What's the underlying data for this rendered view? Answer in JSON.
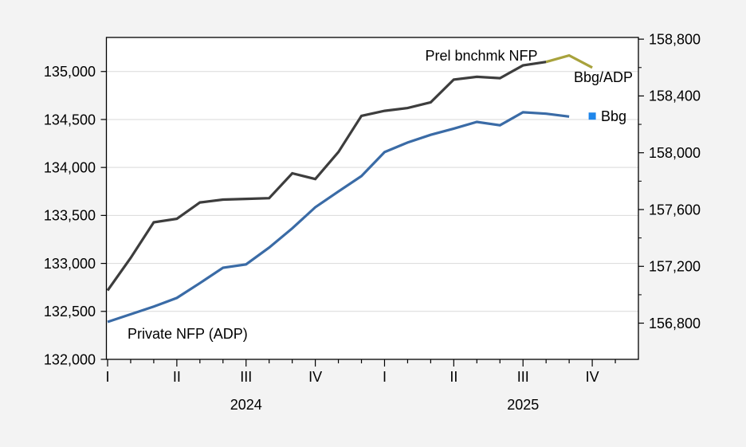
{
  "chart_data": {
    "type": "line",
    "title": "",
    "x_axis": {
      "unit": "month",
      "start": "2024-01",
      "end": "2025-12",
      "months": 24,
      "quarter_tick_labels": [
        "I",
        "II",
        "III",
        "IV",
        "I",
        "II",
        "III",
        "IV"
      ],
      "year_labels": [
        "2024",
        "2025"
      ]
    },
    "left_axis": {
      "ticks": [
        132000,
        132500,
        133000,
        133500,
        134000,
        134500,
        135000
      ],
      "range": [
        132000,
        135355
      ]
    },
    "right_axis": {
      "ticks": [
        156800,
        157200,
        157600,
        158000,
        158400,
        158800
      ],
      "minor_step": 200,
      "range": [
        156545,
        158812
      ]
    },
    "grid": "horizontal",
    "legend_position": "inline-annotations",
    "series": [
      {
        "name": "Prel bnchmk NFP",
        "axis": "right",
        "style": "line",
        "color": "#3d3d3d",
        "values": [
          157030,
          157260,
          157510,
          157535,
          157650,
          157670,
          157675,
          157680,
          157855,
          157815,
          158005,
          158260,
          158295,
          158315,
          158355,
          158515,
          158535,
          158525,
          158615,
          158640,
          null,
          null,
          null,
          null
        ]
      },
      {
        "name": "Bbg/ADP",
        "axis": "right",
        "style": "line",
        "color": "#a8a23c",
        "values": [
          null,
          null,
          null,
          null,
          null,
          null,
          null,
          null,
          null,
          null,
          null,
          null,
          null,
          null,
          null,
          null,
          null,
          null,
          null,
          158640,
          158685,
          158600,
          null,
          null
        ]
      },
      {
        "name": "Private NFP (ADP)",
        "axis": "left",
        "style": "line",
        "color": "#3a6ba6",
        "values": [
          132390,
          132470,
          132550,
          132640,
          132795,
          132955,
          132990,
          133165,
          133365,
          133585,
          133750,
          133910,
          134160,
          134260,
          134340,
          134405,
          134475,
          134440,
          134575,
          134560,
          134530,
          null,
          null,
          null
        ]
      },
      {
        "name": "Bbg",
        "axis": "left",
        "style": "square-marker",
        "color": "#1e86ea",
        "values": [
          null,
          null,
          null,
          null,
          null,
          null,
          null,
          null,
          null,
          null,
          null,
          null,
          null,
          null,
          null,
          null,
          null,
          null,
          null,
          null,
          null,
          134535,
          null,
          null
        ]
      }
    ],
    "annotations": {
      "prel": {
        "text": "Prel bnchmk NFP",
        "color": "#262626"
      },
      "bbg_adp": {
        "text": "Bbg/ADP",
        "color": "#a8a23c"
      },
      "private_adp": {
        "text": "Private NFP (ADP)",
        "color": "#3a6ba6"
      },
      "bbg": {
        "text": "Bbg",
        "color": "#1e86ea"
      }
    },
    "colors": {
      "background": "#f3f3f3",
      "plot_background": "#ffffff",
      "grid": "#d9d9d9",
      "axis": "#000000"
    }
  }
}
